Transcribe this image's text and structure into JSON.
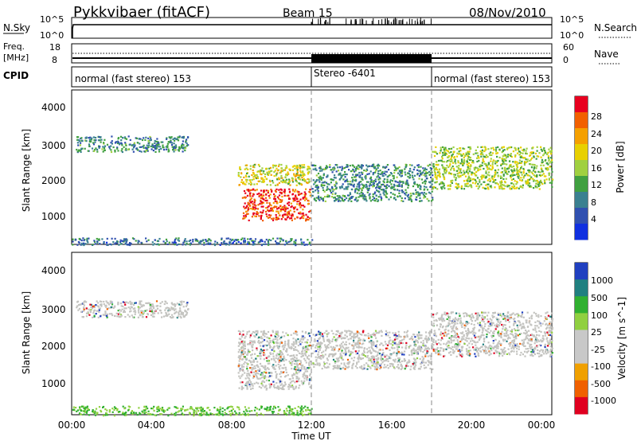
{
  "header": {
    "title": "Pykkvibaer (fitACF)",
    "beam": "Beam 15",
    "date": "08/Nov/2010"
  },
  "strips": {
    "nsky_label": "N.Sky",
    "nsky_ticks": [
      "10^5",
      "10^0"
    ],
    "nsearch_label": "N.Search",
    "nsearch_ticks": [
      "10^5",
      "10^0"
    ],
    "freq_label": "Freq.",
    "freq_unit": "[MHz]",
    "freq_ticks": [
      "18",
      "8"
    ],
    "nave_label": "Nave",
    "nave_ticks": [
      "60",
      "0"
    ],
    "cpid_label": "CPID"
  },
  "modes": [
    {
      "label": "normal (fast stereo) 153",
      "start_h": 0,
      "end_h": 12
    },
    {
      "label": "Stereo -6401",
      "start_h": 12,
      "end_h": 18
    },
    {
      "label": "normal (fast stereo) 153",
      "start_h": 18,
      "end_h": 24
    }
  ],
  "axes": {
    "ylabel": "Slant Range [km]",
    "yticks": [
      "4000",
      "3000",
      "2000",
      "1000"
    ],
    "xticks": [
      "00:00",
      "04:00",
      "08:00",
      "12:00",
      "16:00",
      "20:00",
      "00:00"
    ],
    "xlabel": "Time UT"
  },
  "chart_data": [
    {
      "type": "heatmap",
      "name": "power",
      "x_range_hours": [
        0,
        24
      ],
      "y_range_km": [
        200,
        4600
      ],
      "colorbar_label": "Power [dB]",
      "colorbar_ticks": [
        "28",
        "24",
        "20",
        "16",
        "12",
        "8",
        "4"
      ],
      "colorbar_colors": [
        "#e8001f",
        "#f26000",
        "#f5a000",
        "#e8d000",
        "#a0d040",
        "#40a040",
        "#3a8090",
        "#3050b0",
        "#1030e0"
      ],
      "regions": [
        {
          "t": [
            0.2,
            5.8
          ],
          "r": [
            2850,
            3300
          ],
          "level": 8
        },
        {
          "t": [
            8.3,
            11.9
          ],
          "r": [
            1900,
            2500
          ],
          "level": 16
        },
        {
          "t": [
            8.5,
            11.9
          ],
          "r": [
            900,
            1800
          ],
          "level": 26
        },
        {
          "t": [
            12.0,
            18.0
          ],
          "r": [
            1450,
            2500
          ],
          "level": 8
        },
        {
          "t": [
            18.0,
            24.0
          ],
          "r": [
            1800,
            3000
          ],
          "level": 14
        },
        {
          "t": [
            0.0,
            12.0
          ],
          "r": [
            200,
            400
          ],
          "level": 6
        }
      ]
    },
    {
      "type": "heatmap",
      "name": "velocity",
      "x_range_hours": [
        0,
        24
      ],
      "y_range_km": [
        200,
        4600
      ],
      "colorbar_label": "Velocity [m s^-1]",
      "colorbar_ticks": [
        "1000",
        "500",
        "100",
        "25",
        "-25",
        "-100",
        "-500",
        "-1000"
      ],
      "colorbar_colors": [
        "#2040c0",
        "#208080",
        "#30b030",
        "#90d040",
        "#c8c8c8",
        "#c8c8c8",
        "#f0a000",
        "#f06000",
        "#e00020"
      ],
      "regions": [
        {
          "t": [
            0.2,
            5.8
          ],
          "r": [
            2850,
            3300
          ],
          "value": 0
        },
        {
          "t": [
            8.3,
            11.9
          ],
          "r": [
            900,
            2500
          ],
          "value": 0
        },
        {
          "t": [
            12.0,
            18.0
          ],
          "r": [
            1450,
            2500
          ],
          "value": 0
        },
        {
          "t": [
            18.0,
            24.0
          ],
          "r": [
            1800,
            3000
          ],
          "value": 0
        },
        {
          "t": [
            0.0,
            12.0
          ],
          "r": [
            200,
            450
          ],
          "value": 100
        }
      ]
    }
  ]
}
